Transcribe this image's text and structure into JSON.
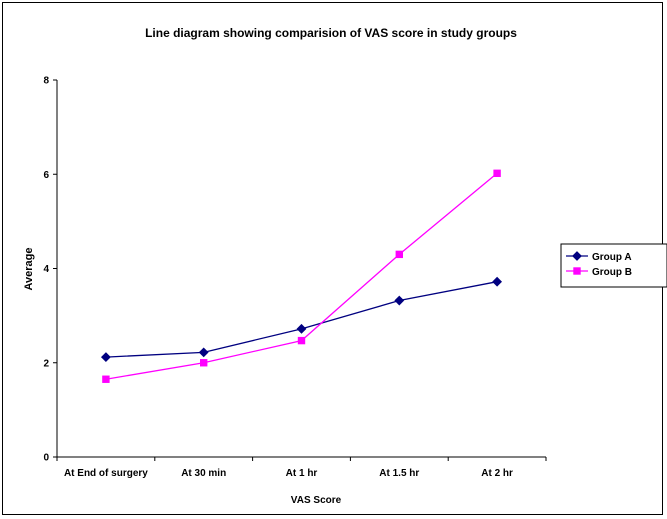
{
  "chart_data": {
    "type": "line",
    "title": "Line diagram showing comparision of VAS score in study groups",
    "xlabel": "VAS Score",
    "ylabel": "Average",
    "categories": [
      "At End of surgery",
      "At 30 min",
      "At 1 hr",
      "At 1.5 hr",
      "At 2 hr"
    ],
    "ylim": [
      0,
      8
    ],
    "yticks": [
      "0",
      "2",
      "4",
      "6",
      "8"
    ],
    "grid": false,
    "legend_position": "right",
    "series": [
      {
        "name": "Group A",
        "color": "#000080",
        "marker": "diamond",
        "values": [
          2.12,
          2.22,
          2.72,
          3.32,
          3.72
        ]
      },
      {
        "name": "Group B",
        "color": "#ff00ff",
        "marker": "square",
        "values": [
          1.65,
          2.0,
          2.47,
          4.3,
          6.02
        ]
      }
    ]
  }
}
